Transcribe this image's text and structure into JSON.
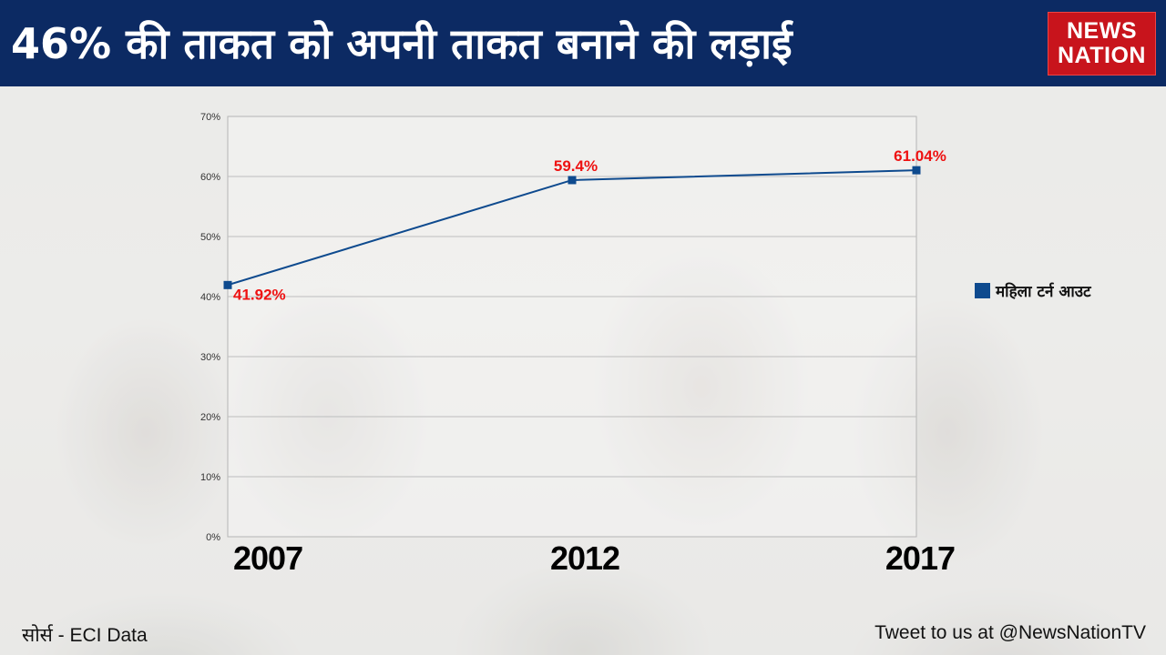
{
  "header": {
    "title": "46% की ताकत को अपनी ताकत बनाने की लड़ाई",
    "logo_line1": "NEWS",
    "logo_line2": "NATION",
    "bg_color": "#0c2a63",
    "logo_color": "#c8141c"
  },
  "chart_data": {
    "type": "line",
    "categories": [
      "2007",
      "2012",
      "2017"
    ],
    "series": [
      {
        "name": "महिला टर्न आउट",
        "values": [
          41.92,
          59.4,
          61.04
        ],
        "color": "#0e4a8e"
      }
    ],
    "data_labels": [
      "41.92%",
      "59.4%",
      "61.04%"
    ],
    "yticks": [
      "0%",
      "10%",
      "20%",
      "30%",
      "40%",
      "50%",
      "60%",
      "70%"
    ],
    "ylim": [
      0,
      70
    ],
    "grid": true,
    "legend_position": "right",
    "label_color": "#ee1111"
  },
  "footer": {
    "source": "सोर्स - ECI Data",
    "tweet": "Tweet to us at @NewsNationTV"
  }
}
